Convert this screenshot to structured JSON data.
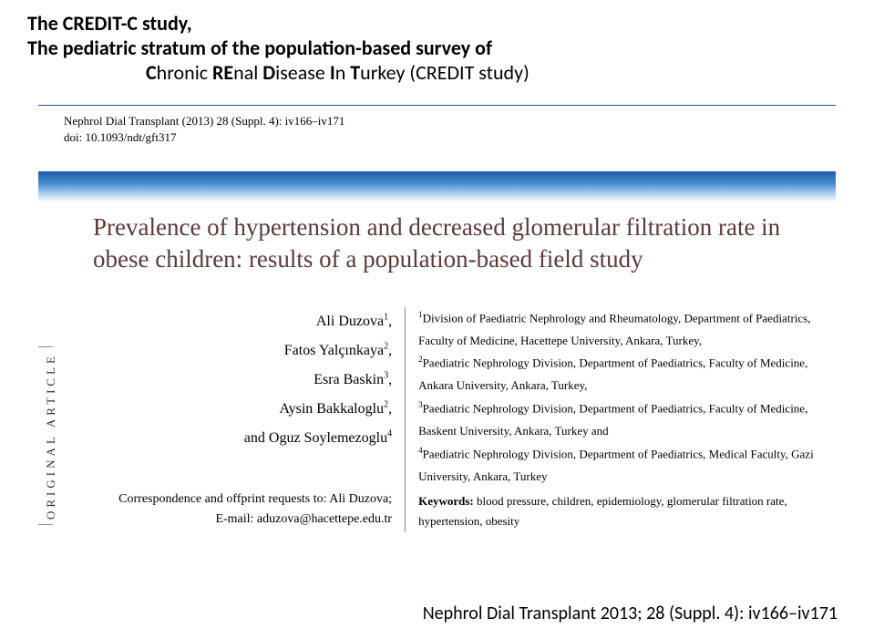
{
  "header": {
    "line1": "The CREDIT-C study,",
    "line2": "The pediatric stratum of the population-based survey of",
    "line3_prefix": "C",
    "line3_mid1": "hronic ",
    "line3_bold2": "RE",
    "line3_mid2": "nal ",
    "line3_bold3": "D",
    "line3_mid3": "isease ",
    "line3_bold4": "I",
    "line3_mid4": "n ",
    "line3_bold5": "T",
    "line3_mid5": "urkey (CREDIT study)"
  },
  "journal": {
    "ref": "Nephrol Dial Transplant (2013) 28 (Suppl. 4): iv166–iv171",
    "doi": "doi: 10.1093/ndt/gft317"
  },
  "title": "Prevalence of hypertension and decreased glomerular filtration rate in obese children: results of a population-based field study",
  "authors": [
    {
      "name": "Ali Duzova",
      "sup": "1"
    },
    {
      "name": "Fatos Yalçınkaya",
      "sup": "2"
    },
    {
      "name": "Esra Baskin",
      "sup": "3"
    },
    {
      "name": "Aysin Bakkaloglu",
      "sup": "2"
    },
    {
      "name": "and Oguz Soylemezoglu",
      "sup": "4"
    }
  ],
  "correspondence": {
    "line1": "Correspondence and offprint requests to: Ali Duzova;",
    "line2": "E-mail: aduzova@hacettepe.edu.tr"
  },
  "affiliations": {
    "a1": "Division of Paediatric Nephrology and Rheumatology, Department of Paediatrics, Faculty of Medicine, Hacettepe University, Ankara, Turkey,",
    "a2": "Paediatric Nephrology Division, Department of Paediatrics, Faculty of Medicine, Ankara University, Ankara, Turkey,",
    "a3": "Paediatric Nephrology Division, Department of Paediatrics, Faculty of Medicine, Baskent University, Ankara, Turkey and",
    "a4": "Paediatric Nephrology Division, Department of Paediatrics, Medical Faculty, Gazi University, Ankara, Turkey"
  },
  "keywords": {
    "label": "Keywords:",
    "text": " blood pressure, children, epidemiology, glomerular filtration rate, hypertension, obesity"
  },
  "vertical_label": "ORIGINAL ARTICLE",
  "citation": "Nephrol Dial Transplant 2013; 28 (Suppl. 4): iv166–iv171",
  "colors": {
    "title_color": "#5a3a3a",
    "gradient_top": "#1e5aa8",
    "gradient_bottom": "#ffffff",
    "border": "#2a4e8a"
  }
}
